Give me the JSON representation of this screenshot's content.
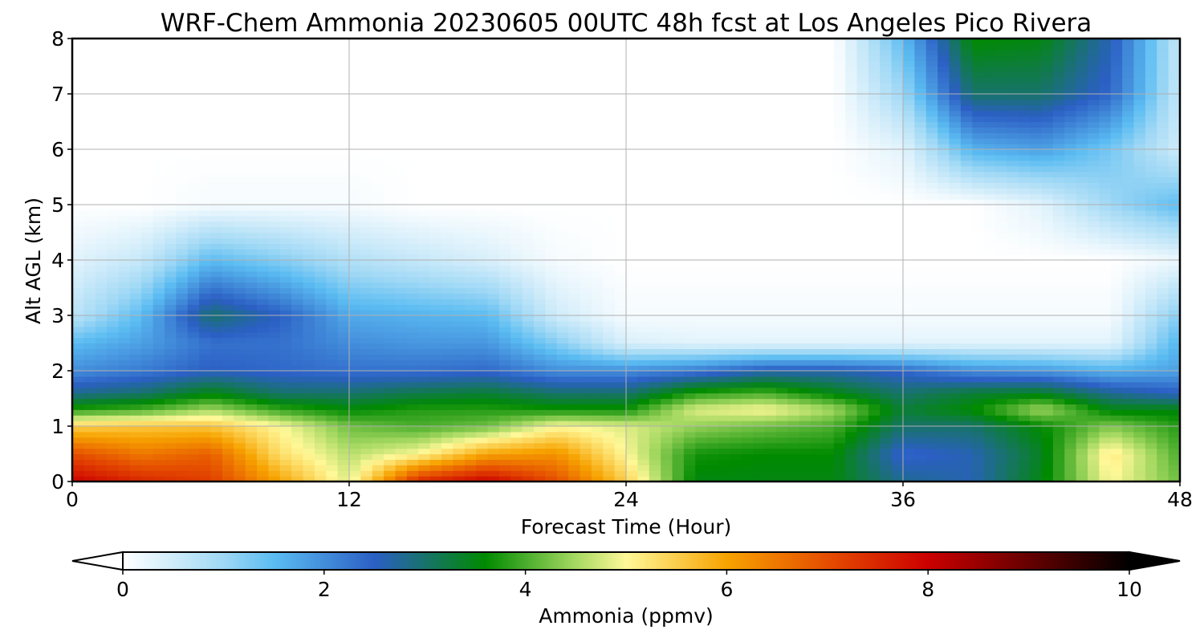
{
  "chart_data": {
    "type": "heatmap",
    "title": "WRF-Chem Ammonia  20230605 00UTC 48h fcst at Los Angeles Pico Rivera",
    "xlabel": "Forecast Time (Hour)",
    "ylabel": "Alt AGL (km)",
    "xlim": [
      0,
      48
    ],
    "ylim": [
      0,
      8
    ],
    "xticks": [
      "0",
      "12",
      "24",
      "36",
      "48"
    ],
    "yticks": [
      "0",
      "1",
      "2",
      "3",
      "4",
      "5",
      "6",
      "7",
      "8"
    ],
    "grid": true,
    "colorbar": {
      "label": "Ammonia  (ppmv)",
      "range": [
        0,
        10
      ],
      "extend": "both",
      "ticks": [
        "0",
        "2",
        "4",
        "6",
        "8",
        "10"
      ],
      "stops": [
        {
          "value": 0,
          "color": "#ffffff"
        },
        {
          "value": 1,
          "color": "#9fd8f5"
        },
        {
          "value": 1.5,
          "color": "#5bbcf2"
        },
        {
          "value": 2.5,
          "color": "#2b5fc4"
        },
        {
          "value": 3.6,
          "color": "#008a00"
        },
        {
          "value": 4.5,
          "color": "#a6d962"
        },
        {
          "value": 5,
          "color": "#fff898"
        },
        {
          "value": 6,
          "color": "#f7a300"
        },
        {
          "value": 7,
          "color": "#e54d00"
        },
        {
          "value": 8,
          "color": "#cc0000"
        },
        {
          "value": 9,
          "color": "#660000"
        },
        {
          "value": 10,
          "color": "#000000"
        }
      ]
    },
    "hours": [
      0,
      3,
      6,
      9,
      12,
      15,
      18,
      21,
      24,
      27,
      30,
      33,
      36,
      39,
      42,
      45,
      48
    ],
    "altitudes_km": [
      0,
      0.5,
      1,
      1.3,
      1.6,
      2,
      2.5,
      3,
      4,
      5,
      6,
      7,
      8
    ],
    "values_ppmv": [
      [
        8.0,
        7.5,
        7.2,
        6.0,
        4.8,
        7.5,
        8.0,
        7.0,
        5.5,
        3.5,
        3.5,
        3.5,
        2.8,
        2.6,
        3.5,
        5.0,
        4.2
      ],
      [
        7.0,
        6.5,
        6.8,
        5.3,
        4.6,
        5.0,
        6.0,
        6.2,
        5.0,
        3.7,
        3.6,
        3.6,
        2.4,
        2.6,
        3.4,
        5.2,
        4.0
      ],
      [
        5.5,
        5.6,
        5.6,
        5.0,
        4.2,
        4.0,
        4.2,
        5.0,
        4.8,
        4.4,
        4.2,
        4.0,
        3.0,
        3.0,
        3.6,
        4.3,
        3.8
      ],
      [
        3.8,
        4.0,
        4.5,
        3.9,
        3.6,
        3.8,
        3.8,
        3.7,
        3.7,
        4.8,
        5.0,
        4.5,
        3.3,
        3.6,
        4.5,
        3.5,
        3.5
      ],
      [
        2.8,
        3.0,
        3.5,
        3.0,
        3.0,
        3.2,
        3.3,
        3.0,
        3.0,
        3.8,
        4.0,
        3.5,
        3.0,
        3.3,
        3.4,
        2.8,
        2.5
      ],
      [
        2.0,
        2.2,
        2.5,
        2.4,
        2.3,
        2.3,
        2.4,
        2.0,
        2.0,
        2.2,
        2.6,
        2.6,
        2.4,
        2.0,
        1.9,
        1.6,
        1.8
      ],
      [
        1.5,
        1.8,
        2.3,
        2.3,
        2.0,
        1.9,
        1.9,
        1.2,
        0.4,
        0.3,
        0.3,
        0.3,
        0.3,
        0.3,
        0.3,
        0.3,
        1.6
      ],
      [
        0.7,
        1.5,
        3.0,
        2.5,
        1.7,
        1.6,
        1.5,
        0.5,
        0.1,
        0.1,
        0.1,
        0.1,
        0.1,
        0.1,
        0.1,
        0.1,
        1.2
      ],
      [
        0.3,
        0.6,
        1.5,
        1.2,
        0.8,
        0.6,
        0.4,
        0.1,
        0.0,
        0.0,
        0.0,
        0.0,
        0.0,
        0.0,
        0.0,
        0.0,
        0.2
      ],
      [
        0.0,
        0.0,
        0.1,
        0.1,
        0.1,
        0.0,
        0.0,
        0.0,
        0.0,
        0.0,
        0.0,
        0.0,
        0.0,
        0.0,
        0.3,
        1.0,
        1.5
      ],
      [
        0.0,
        0.0,
        0.0,
        0.0,
        0.0,
        0.0,
        0.0,
        0.0,
        0.0,
        0.0,
        0.0,
        0.0,
        0.3,
        1.6,
        1.8,
        1.3,
        0.5
      ],
      [
        0.0,
        0.0,
        0.0,
        0.0,
        0.0,
        0.0,
        0.0,
        0.0,
        0.0,
        0.0,
        0.0,
        0.0,
        1.0,
        3.0,
        3.0,
        2.4,
        0.6
      ],
      [
        0.0,
        0.0,
        0.0,
        0.0,
        0.0,
        0.0,
        0.0,
        0.0,
        0.0,
        0.0,
        0.0,
        0.0,
        1.5,
        3.6,
        3.5,
        2.6,
        0.6
      ]
    ]
  }
}
